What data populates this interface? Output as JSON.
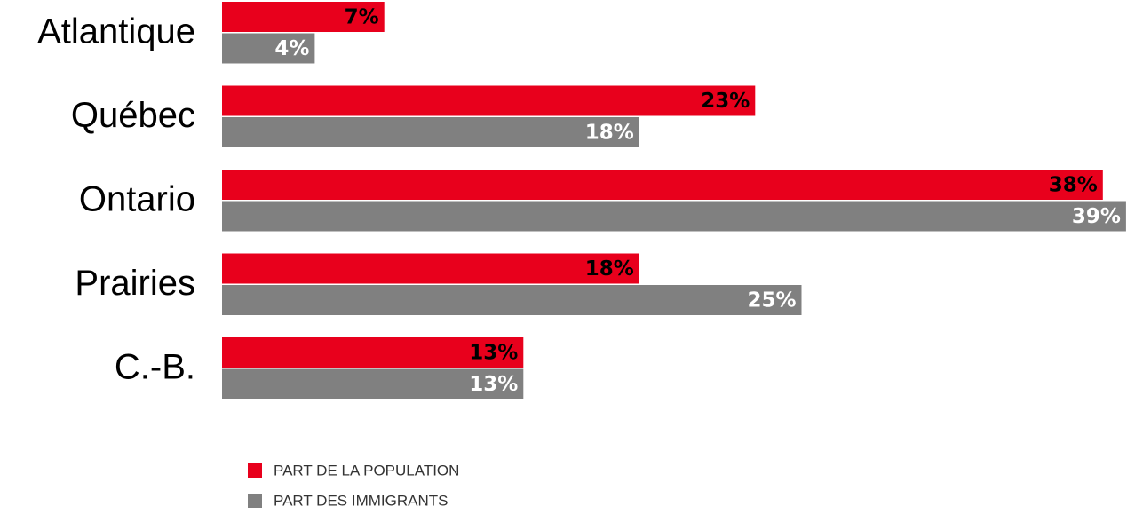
{
  "chart_data": {
    "type": "hbar",
    "categories": [
      "Atlantique",
      "Québec",
      "Ontario",
      "Prairies",
      "C.-B."
    ],
    "series": [
      {
        "name": "PART DE LA POPULATION",
        "color": "#e8001c",
        "values": [
          7,
          23,
          38,
          18,
          13
        ],
        "value_labels": [
          "7%",
          "23%",
          "38%",
          "18%",
          "13%"
        ]
      },
      {
        "name": "PART DES IMMIGRANTS",
        "color": "#808080",
        "values": [
          4,
          18,
          39,
          25,
          13
        ],
        "value_labels": [
          "4%",
          "18%",
          "39%",
          "25%",
          "13%"
        ]
      }
    ]
  }
}
